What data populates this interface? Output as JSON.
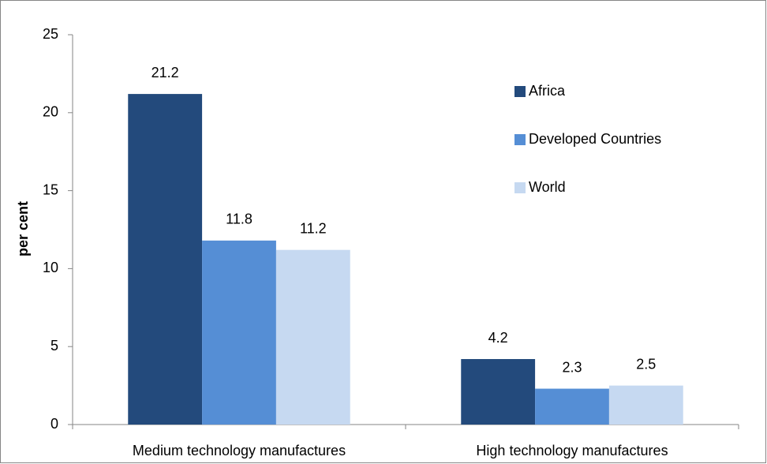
{
  "chart_data": {
    "type": "bar",
    "y_label": "per cent",
    "categories": [
      "Medium technology manufactures",
      "High technology manufactures"
    ],
    "series": [
      {
        "name": "Africa",
        "color": "#234a7c",
        "values": [
          21.2,
          4.2
        ]
      },
      {
        "name": "Developed Countries",
        "color": "#558ed5",
        "values": [
          11.8,
          2.3
        ]
      },
      {
        "name": "World",
        "color": "#c6d9f1",
        "values": [
          11.2,
          2.5
        ]
      }
    ],
    "ylim": [
      0,
      25
    ],
    "yticks": [
      0,
      5,
      10,
      15,
      20,
      25
    ],
    "grid": false,
    "legend": "upper right",
    "data_labels": true
  }
}
